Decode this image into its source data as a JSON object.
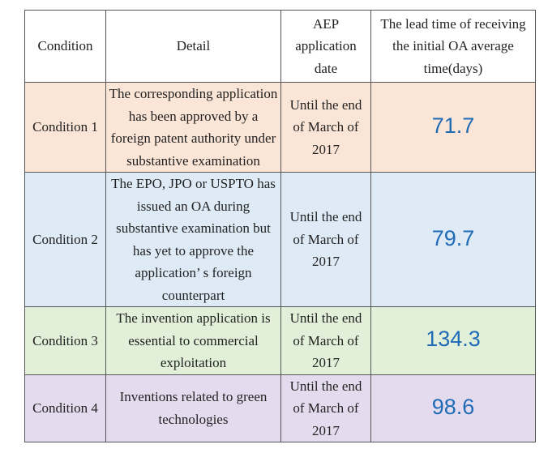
{
  "headers": {
    "condition": "Condition",
    "detail": "Detail",
    "aep_date": "AEP application date",
    "lead_time": "The lead time of receiving the initial OA average time(days)"
  },
  "rows": [
    {
      "condition": "Condition 1",
      "detail": "The corresponding application has been approved by a foreign patent authority under substantive examination",
      "date": "Until the end of March of 2017",
      "value": "71.7",
      "bg": "#fbe5d6"
    },
    {
      "condition": "Condition 2",
      "detail": "The EPO, JPO or USPTO has issued an OA during substantive examination but has yet to approve the application’ s foreign counterpart",
      "date": "Until the end of March of 2017",
      "value": "79.7",
      "bg": "#deebf7"
    },
    {
      "condition": "Condition 3",
      "detail": "The invention application is essential to commercial exploitation",
      "date": "Until the end of March of 2017",
      "value": "134.3",
      "bg": "#e2f0d9"
    },
    {
      "condition": "Condition 4",
      "detail": "Inventions related to green technologies",
      "date": "Until the end of March of 2017",
      "value": "98.6",
      "bg": "#e4dcee"
    }
  ],
  "colors": {
    "value_text": "#1f6bb5",
    "border": "#555555"
  }
}
